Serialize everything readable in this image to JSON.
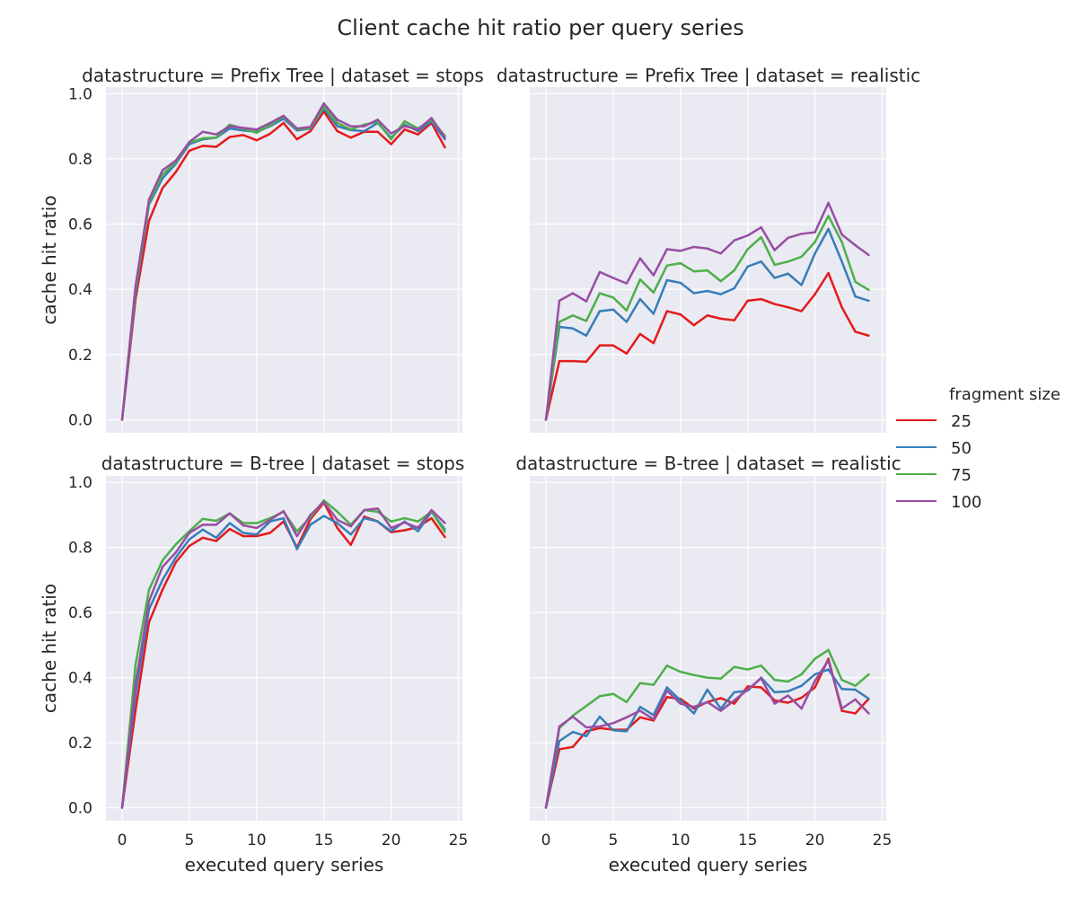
{
  "figure": {
    "title": "Client cache hit ratio per query series"
  },
  "legend": {
    "title": "fragment size",
    "placement": "right-center"
  },
  "chart_data": [
    {
      "type": "line",
      "facet_title": "datastructure = Prefix Tree | dataset = stops",
      "xlabel": "",
      "ylabel": "cache hit ratio",
      "xlim": [
        -1.2,
        25.3
      ],
      "ylim": [
        -0.04,
        1.02
      ],
      "xticks": [
        0,
        5,
        10,
        15,
        20,
        25
      ],
      "yticks": [
        0.0,
        0.2,
        0.4,
        0.6,
        0.8,
        1.0
      ],
      "show_xtick_labels": false,
      "show_ytick_labels": true,
      "grid": true,
      "x": [
        0,
        1,
        2,
        3,
        4,
        5,
        6,
        7,
        8,
        9,
        10,
        11,
        12,
        13,
        14,
        15,
        16,
        17,
        18,
        19,
        20,
        21,
        22,
        23,
        24
      ],
      "series": [
        {
          "name": "25",
          "color": "#e41a1c",
          "values": [
            0.0,
            0.37,
            0.61,
            0.71,
            0.76,
            0.825,
            0.84,
            0.837,
            0.867,
            0.873,
            0.857,
            0.877,
            0.91,
            0.86,
            0.885,
            0.945,
            0.885,
            0.865,
            0.883,
            0.883,
            0.845,
            0.89,
            0.875,
            0.91,
            0.835
          ]
        },
        {
          "name": "50",
          "color": "#377eb8",
          "values": [
            0.0,
            0.39,
            0.66,
            0.74,
            0.785,
            0.845,
            0.86,
            0.865,
            0.893,
            0.887,
            0.883,
            0.9,
            0.923,
            0.887,
            0.893,
            0.955,
            0.9,
            0.888,
            0.885,
            0.91,
            0.865,
            0.905,
            0.885,
            0.915,
            0.86
          ]
        },
        {
          "name": "75",
          "color": "#4daf4a",
          "values": [
            0.0,
            0.4,
            0.665,
            0.752,
            0.79,
            0.85,
            0.863,
            0.865,
            0.905,
            0.893,
            0.88,
            0.903,
            0.93,
            0.89,
            0.895,
            0.96,
            0.91,
            0.89,
            0.905,
            0.913,
            0.86,
            0.915,
            0.893,
            0.92,
            0.87
          ]
        },
        {
          "name": "100",
          "color": "#984ea3",
          "values": [
            0.0,
            0.41,
            0.675,
            0.765,
            0.795,
            0.852,
            0.883,
            0.875,
            0.9,
            0.895,
            0.89,
            0.91,
            0.932,
            0.893,
            0.898,
            0.97,
            0.92,
            0.9,
            0.9,
            0.92,
            0.878,
            0.9,
            0.89,
            0.925,
            0.865
          ]
        }
      ]
    },
    {
      "type": "line",
      "facet_title": "datastructure = Prefix Tree | dataset = realistic",
      "xlabel": "",
      "ylabel": "",
      "xlim": [
        -1.2,
        25.3
      ],
      "ylim": [
        -0.04,
        1.02
      ],
      "xticks": [
        0,
        5,
        10,
        15,
        20,
        25
      ],
      "yticks": [
        0.0,
        0.2,
        0.4,
        0.6,
        0.8,
        1.0
      ],
      "show_xtick_labels": false,
      "show_ytick_labels": false,
      "grid": true,
      "x": [
        0,
        1,
        2,
        3,
        4,
        5,
        6,
        7,
        8,
        9,
        10,
        11,
        12,
        13,
        14,
        15,
        16,
        17,
        18,
        19,
        20,
        21,
        22,
        23,
        24
      ],
      "series": [
        {
          "name": "25",
          "color": "#e41a1c",
          "values": [
            0.0,
            0.18,
            0.18,
            0.178,
            0.228,
            0.228,
            0.203,
            0.263,
            0.235,
            0.333,
            0.323,
            0.29,
            0.32,
            0.31,
            0.305,
            0.365,
            0.37,
            0.355,
            0.345,
            0.333,
            0.385,
            0.45,
            0.345,
            0.27,
            0.258
          ]
        },
        {
          "name": "50",
          "color": "#377eb8",
          "values": [
            0.0,
            0.285,
            0.28,
            0.258,
            0.333,
            0.338,
            0.3,
            0.37,
            0.325,
            0.428,
            0.42,
            0.388,
            0.395,
            0.385,
            0.403,
            0.47,
            0.485,
            0.435,
            0.448,
            0.413,
            0.51,
            0.585,
            0.485,
            0.378,
            0.365
          ]
        },
        {
          "name": "75",
          "color": "#4daf4a",
          "values": [
            0.0,
            0.3,
            0.32,
            0.303,
            0.388,
            0.375,
            0.335,
            0.43,
            0.39,
            0.473,
            0.48,
            0.455,
            0.458,
            0.425,
            0.458,
            0.523,
            0.56,
            0.475,
            0.485,
            0.5,
            0.545,
            0.625,
            0.545,
            0.423,
            0.398
          ]
        },
        {
          "name": "100",
          "color": "#984ea3",
          "values": [
            0.0,
            0.365,
            0.388,
            0.363,
            0.453,
            0.435,
            0.418,
            0.495,
            0.443,
            0.523,
            0.518,
            0.53,
            0.525,
            0.51,
            0.55,
            0.565,
            0.59,
            0.52,
            0.558,
            0.57,
            0.575,
            0.665,
            0.568,
            0.535,
            0.505
          ]
        }
      ]
    },
    {
      "type": "line",
      "facet_title": "datastructure = B-tree | dataset = stops",
      "xlabel": "executed query series",
      "ylabel": "cache hit ratio",
      "xlim": [
        -1.2,
        25.3
      ],
      "ylim": [
        -0.04,
        1.02
      ],
      "xticks": [
        0,
        5,
        10,
        15,
        20,
        25
      ],
      "yticks": [
        0.0,
        0.2,
        0.4,
        0.6,
        0.8,
        1.0
      ],
      "show_xtick_labels": true,
      "show_ytick_labels": true,
      "grid": true,
      "x": [
        0,
        1,
        2,
        3,
        4,
        5,
        6,
        7,
        8,
        9,
        10,
        11,
        12,
        13,
        14,
        15,
        16,
        17,
        18,
        19,
        20,
        21,
        22,
        23,
        24
      ],
      "series": [
        {
          "name": "25",
          "color": "#e41a1c",
          "values": [
            0.0,
            0.3,
            0.57,
            0.67,
            0.755,
            0.805,
            0.83,
            0.82,
            0.857,
            0.835,
            0.835,
            0.845,
            0.88,
            0.8,
            0.887,
            0.938,
            0.86,
            0.808,
            0.895,
            0.88,
            0.847,
            0.853,
            0.863,
            0.89,
            0.832
          ]
        },
        {
          "name": "50",
          "color": "#377eb8",
          "values": [
            0.0,
            0.35,
            0.61,
            0.7,
            0.77,
            0.825,
            0.855,
            0.83,
            0.875,
            0.845,
            0.84,
            0.88,
            0.89,
            0.795,
            0.87,
            0.897,
            0.875,
            0.84,
            0.89,
            0.88,
            0.85,
            0.88,
            0.85,
            0.91,
            0.855
          ]
        },
        {
          "name": "75",
          "color": "#4daf4a",
          "values": [
            0.0,
            0.44,
            0.67,
            0.76,
            0.81,
            0.85,
            0.888,
            0.882,
            0.905,
            0.875,
            0.875,
            0.89,
            0.91,
            0.85,
            0.893,
            0.945,
            0.91,
            0.87,
            0.915,
            0.91,
            0.88,
            0.89,
            0.88,
            0.91,
            0.848
          ]
        },
        {
          "name": "100",
          "color": "#984ea3",
          "values": [
            0.0,
            0.38,
            0.635,
            0.74,
            0.785,
            0.845,
            0.87,
            0.87,
            0.905,
            0.868,
            0.86,
            0.885,
            0.912,
            0.835,
            0.9,
            0.94,
            0.885,
            0.865,
            0.915,
            0.92,
            0.86,
            0.877,
            0.86,
            0.915,
            0.875
          ]
        }
      ]
    },
    {
      "type": "line",
      "facet_title": "datastructure = B-tree | dataset = realistic",
      "xlabel": "executed query series",
      "ylabel": "",
      "xlim": [
        -1.2,
        25.3
      ],
      "ylim": [
        -0.04,
        1.02
      ],
      "xticks": [
        0,
        5,
        10,
        15,
        20,
        25
      ],
      "yticks": [
        0.0,
        0.2,
        0.4,
        0.6,
        0.8,
        1.0
      ],
      "show_xtick_labels": true,
      "show_ytick_labels": false,
      "grid": true,
      "x": [
        0,
        1,
        2,
        3,
        4,
        5,
        6,
        7,
        8,
        9,
        10,
        11,
        12,
        13,
        14,
        15,
        16,
        17,
        18,
        19,
        20,
        21,
        22,
        23,
        24
      ],
      "series": [
        {
          "name": "25",
          "color": "#e41a1c",
          "values": [
            0.0,
            0.18,
            0.187,
            0.235,
            0.245,
            0.24,
            0.24,
            0.278,
            0.268,
            0.34,
            0.335,
            0.305,
            0.325,
            0.337,
            0.32,
            0.373,
            0.37,
            0.33,
            0.323,
            0.338,
            0.37,
            0.458,
            0.298,
            0.29,
            0.335
          ]
        },
        {
          "name": "50",
          "color": "#377eb8",
          "values": [
            0.0,
            0.205,
            0.233,
            0.22,
            0.28,
            0.238,
            0.235,
            0.31,
            0.285,
            0.37,
            0.33,
            0.29,
            0.363,
            0.305,
            0.355,
            0.36,
            0.4,
            0.355,
            0.358,
            0.375,
            0.41,
            0.425,
            0.365,
            0.363,
            0.335
          ]
        },
        {
          "name": "75",
          "color": "#4daf4a",
          "values": [
            0.0,
            0.245,
            0.283,
            0.313,
            0.343,
            0.35,
            0.325,
            0.383,
            0.378,
            0.437,
            0.418,
            0.408,
            0.4,
            0.397,
            0.433,
            0.425,
            0.437,
            0.393,
            0.388,
            0.41,
            0.458,
            0.485,
            0.393,
            0.375,
            0.41
          ]
        },
        {
          "name": "100",
          "color": "#984ea3",
          "values": [
            0.0,
            0.25,
            0.28,
            0.247,
            0.25,
            0.26,
            0.278,
            0.298,
            0.272,
            0.36,
            0.32,
            0.31,
            0.325,
            0.298,
            0.33,
            0.363,
            0.398,
            0.32,
            0.345,
            0.305,
            0.39,
            0.453,
            0.305,
            0.333,
            0.29
          ]
        }
      ]
    }
  ]
}
